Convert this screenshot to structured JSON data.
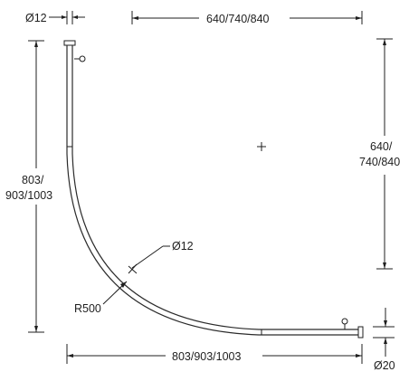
{
  "dimensions": {
    "top_diameter": "Ø12",
    "top_width": "640/740/840",
    "right_height": [
      "640/",
      "740/840"
    ],
    "left_height": [
      "803/",
      "903/1003"
    ],
    "bottom_width": "803/903/1003",
    "pipe_diameter": "Ø12",
    "radius": "R500",
    "bottom_diameter": "Ø20"
  },
  "colors": {
    "line": "#1f1f1f",
    "background": "#ffffff"
  },
  "icons": {
    "center_mark": "plus-crosshair",
    "rail_ends": "mounting-brackets"
  }
}
